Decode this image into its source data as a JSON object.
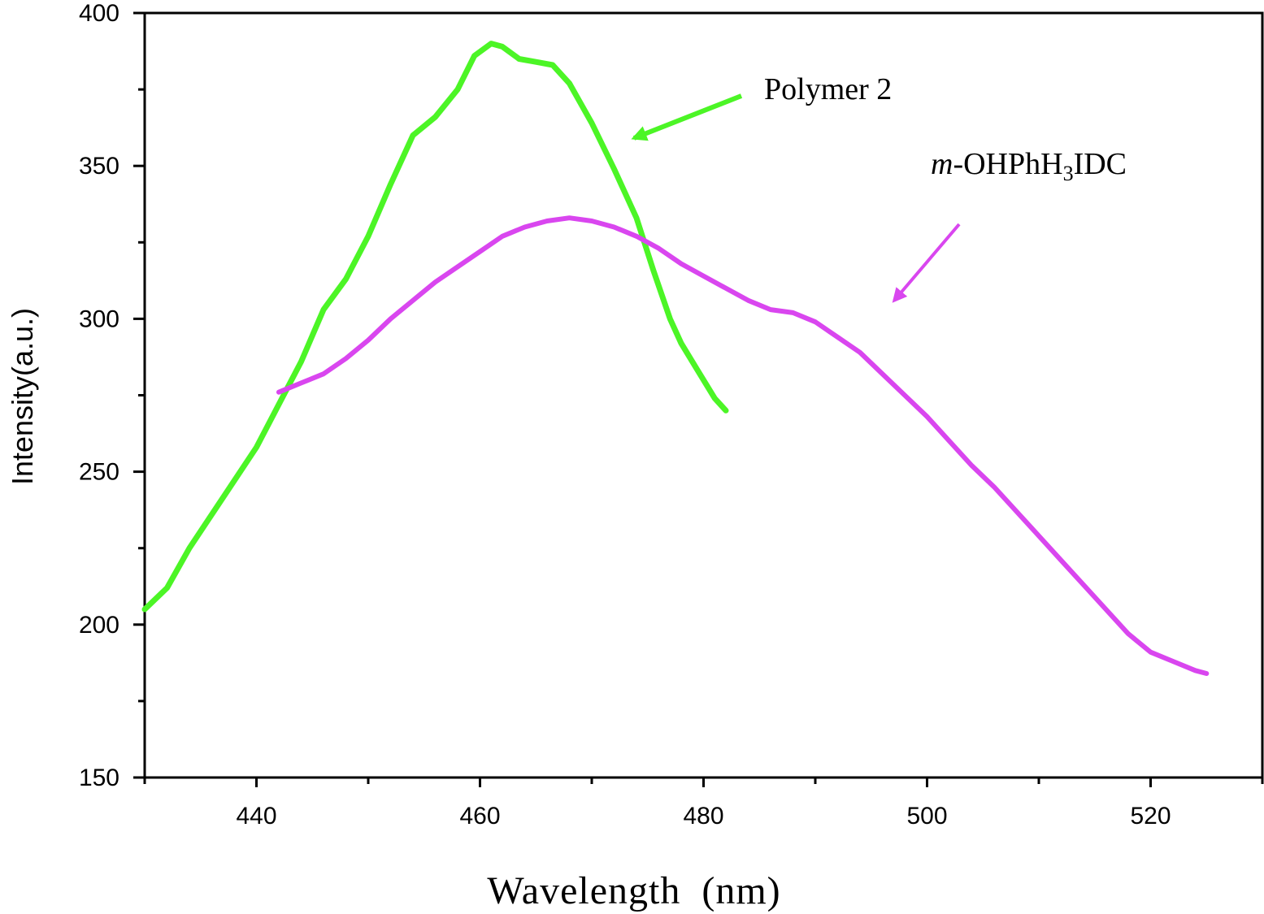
{
  "chart_data": {
    "type": "line",
    "title": "",
    "xlabel": "Wavelength  (nm)",
    "ylabel": "Intensity(a.u.)",
    "xlim": [
      430,
      530
    ],
    "ylim": [
      150,
      400
    ],
    "x_ticks": [
      440,
      460,
      480,
      500,
      520
    ],
    "y_ticks": [
      150,
      200,
      250,
      300,
      350,
      400
    ],
    "x_ticks_minor": [
      430,
      450,
      470,
      490,
      510,
      530
    ],
    "y_ticks_minor": [
      175,
      225,
      275,
      325,
      375
    ],
    "grid": false,
    "series": [
      {
        "name": "Polymer 2",
        "color": "#4cf526",
        "points": [
          [
            430,
            205
          ],
          [
            432,
            212
          ],
          [
            434,
            225
          ],
          [
            436,
            236
          ],
          [
            438,
            247
          ],
          [
            440,
            258
          ],
          [
            442,
            272
          ],
          [
            444,
            286
          ],
          [
            446,
            303
          ],
          [
            448,
            313
          ],
          [
            450,
            327
          ],
          [
            452,
            344
          ],
          [
            454,
            360
          ],
          [
            456,
            366
          ],
          [
            458,
            375
          ],
          [
            459.5,
            386
          ],
          [
            461,
            390
          ],
          [
            462,
            389
          ],
          [
            463.5,
            385
          ],
          [
            465,
            384
          ],
          [
            466.5,
            383
          ],
          [
            468,
            377
          ],
          [
            470,
            364
          ],
          [
            472,
            349
          ],
          [
            474,
            333
          ],
          [
            475.5,
            316
          ],
          [
            477,
            300
          ],
          [
            478,
            292
          ],
          [
            479.5,
            283
          ],
          [
            481,
            274
          ],
          [
            482,
            270
          ]
        ]
      },
      {
        "name": "m-OHPhH3IDC",
        "color": "#d946ef",
        "points": [
          [
            442,
            276
          ],
          [
            444,
            279
          ],
          [
            446,
            282
          ],
          [
            448,
            287
          ],
          [
            450,
            293
          ],
          [
            452,
            300
          ],
          [
            454,
            306
          ],
          [
            456,
            312
          ],
          [
            458,
            317
          ],
          [
            460,
            322
          ],
          [
            462,
            327
          ],
          [
            464,
            330
          ],
          [
            466,
            332
          ],
          [
            468,
            333
          ],
          [
            470,
            332
          ],
          [
            472,
            330
          ],
          [
            474,
            327
          ],
          [
            476,
            323
          ],
          [
            478,
            318
          ],
          [
            480,
            314
          ],
          [
            482,
            310
          ],
          [
            484,
            306
          ],
          [
            486,
            303
          ],
          [
            488,
            302
          ],
          [
            490,
            299
          ],
          [
            492,
            294
          ],
          [
            494,
            289
          ],
          [
            496,
            282
          ],
          [
            498,
            275
          ],
          [
            500,
            268
          ],
          [
            502,
            260
          ],
          [
            504,
            252
          ],
          [
            506,
            245
          ],
          [
            508,
            237
          ],
          [
            510,
            229
          ],
          [
            512,
            221
          ],
          [
            514,
            213
          ],
          [
            516,
            205
          ],
          [
            518,
            197
          ],
          [
            520,
            191
          ],
          [
            522,
            188
          ],
          [
            524,
            185
          ],
          [
            525,
            184
          ]
        ]
      }
    ],
    "annotations": [
      {
        "text": "Polymer 2",
        "target_series": "Polymer 2"
      },
      {
        "text_parts": [
          "m",
          "-OHPhH",
          "3",
          "IDC"
        ],
        "target_series": "m-OHPhH3IDC"
      }
    ]
  }
}
